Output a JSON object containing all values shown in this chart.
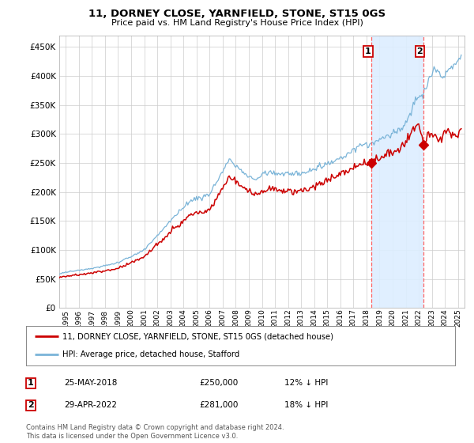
{
  "title": "11, DORNEY CLOSE, YARNFIELD, STONE, ST15 0GS",
  "subtitle": "Price paid vs. HM Land Registry's House Price Index (HPI)",
  "ytick_values": [
    0,
    50000,
    100000,
    150000,
    200000,
    250000,
    300000,
    350000,
    400000,
    450000
  ],
  "ylim": [
    0,
    470000
  ],
  "xlim_start": 1994.5,
  "xlim_end": 2025.5,
  "hpi_color": "#7ab4d8",
  "price_color": "#cc0000",
  "marker1_date": 2018.37,
  "marker1_price": 250000,
  "marker2_date": 2022.33,
  "marker2_price": 281000,
  "shade_color": "#ddeeff",
  "vline_color": "#ff6666",
  "legend_label1": "11, DORNEY CLOSE, YARNFIELD, STONE, ST15 0GS (detached house)",
  "legend_label2": "HPI: Average price, detached house, Stafford",
  "background_color": "#ffffff",
  "grid_color": "#cccccc",
  "footer": "Contains HM Land Registry data © Crown copyright and database right 2024.\nThis data is licensed under the Open Government Licence v3.0."
}
